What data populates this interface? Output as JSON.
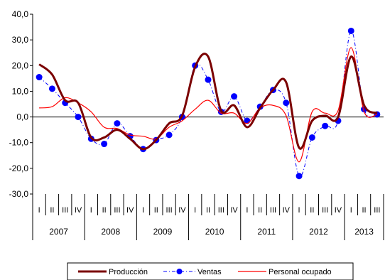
{
  "chart_data": {
    "type": "line",
    "title": "",
    "xlabel": "",
    "ylabel": "",
    "ylim": [
      -30,
      40
    ],
    "yticks": [
      40,
      30,
      20,
      10,
      0,
      -10,
      -20,
      -30
    ],
    "ytick_labels": [
      "40,0",
      "30,0",
      "20,0",
      "10,0",
      "0,0",
      "-10,0",
      "-20,0",
      "-30,0"
    ],
    "grid": false,
    "quarter_labels": [
      "I",
      "II",
      "III",
      "IV",
      "I",
      "II",
      "III",
      "IV",
      "I",
      "II",
      "III",
      "IV",
      "I",
      "II",
      "III",
      "IV",
      "I",
      "II",
      "III",
      "IV",
      "I",
      "II",
      "III",
      "IV",
      "I",
      "II",
      "III"
    ],
    "years": [
      {
        "label": "2007",
        "quarters": 4
      },
      {
        "label": "2008",
        "quarters": 4
      },
      {
        "label": "2009",
        "quarters": 4
      },
      {
        "label": "2010",
        "quarters": 4
      },
      {
        "label": "2011",
        "quarters": 4
      },
      {
        "label": "2012",
        "quarters": 4
      },
      {
        "label": "2013",
        "quarters": 3
      }
    ],
    "legend_position": "bottom",
    "series": [
      {
        "name": "Producción",
        "color": "#7B0000",
        "style": "thick-solid",
        "values": [
          20.5,
          16.5,
          6.5,
          5.5,
          -8.0,
          -8.0,
          -5.0,
          -8.5,
          -12.5,
          -9.0,
          -2.5,
          0.5,
          19.5,
          23.5,
          2.5,
          4.5,
          -4.0,
          3.5,
          10.5,
          13.5,
          -12.0,
          -1.5,
          0.5,
          0.0,
          23.5,
          4.5,
          1.5
        ]
      },
      {
        "name": "Ventas",
        "color": "#0000FF",
        "style": "dashdot-markers",
        "values": [
          15.5,
          11.0,
          5.5,
          0.0,
          -8.5,
          -10.5,
          -2.5,
          -7.5,
          -12.5,
          -9.0,
          -7.0,
          0.0,
          20.0,
          14.5,
          2.0,
          8.0,
          -1.5,
          4.0,
          10.5,
          5.5,
          -23.0,
          -8.0,
          -3.5,
          -1.5,
          33.5,
          3.0,
          1.0
        ]
      },
      {
        "name": "Personal ocupado",
        "color": "#FF0000",
        "style": "thin-solid",
        "values": [
          3.5,
          4.0,
          7.5,
          5.5,
          2.0,
          -4.0,
          -4.5,
          -7.0,
          -7.5,
          -8.5,
          -4.0,
          -1.5,
          3.0,
          6.5,
          1.5,
          1.5,
          -2.5,
          3.5,
          4.5,
          0.5,
          -17.5,
          2.0,
          1.5,
          2.5,
          27.0,
          2.0,
          1.0
        ]
      }
    ]
  }
}
